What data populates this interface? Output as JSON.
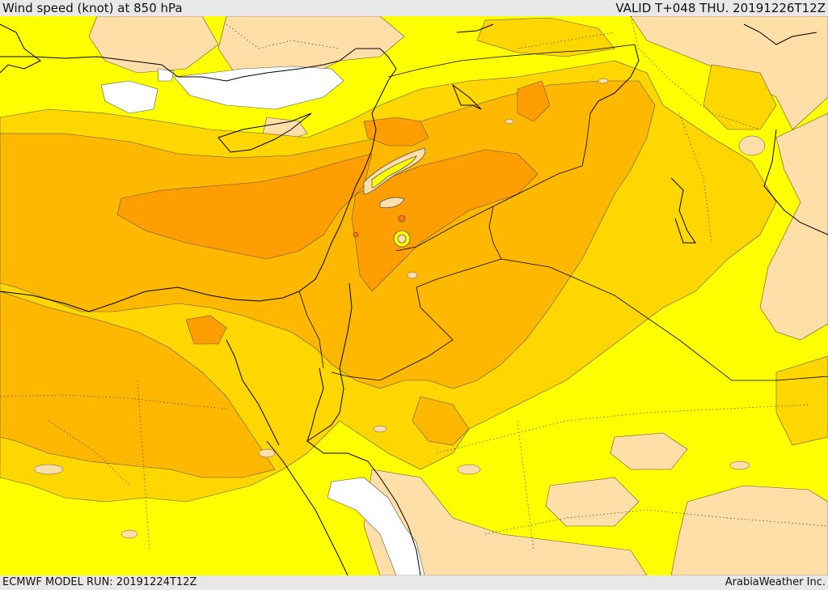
{
  "header": {
    "title": "Wind speed (knot) at 850 hPa",
    "valid_time": "VALID T+048 THU. 20191226T12Z"
  },
  "footer": {
    "model_run": "ECMWF MODEL RUN: 20191224T12Z",
    "credit": "ArabiaWeather Inc."
  },
  "colors": {
    "calm": "#ffffff",
    "light": "#ffdea8",
    "moderate": "#ffff00",
    "fresh": "#ffd700",
    "strong": "#ffb800",
    "very_strong": "#ff9e00",
    "core": "#ff7a00",
    "coast": "#000000",
    "border": "#000000"
  }
}
